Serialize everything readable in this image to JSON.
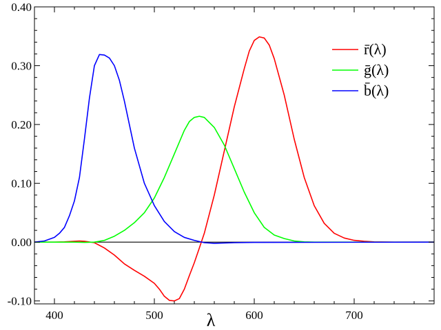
{
  "chart_data": {
    "type": "line",
    "title": "",
    "xlabel": "λ",
    "ylabel": "",
    "xlim": [
      380,
      780
    ],
    "ylim": [
      -0.105,
      0.4
    ],
    "xticks": [
      400,
      500,
      600,
      700
    ],
    "xtick_labels": [
      "400",
      "500",
      "600",
      "700"
    ],
    "yticks": [
      -0.1,
      0.0,
      0.1,
      0.2,
      0.3,
      0.4
    ],
    "ytick_labels": [
      "-0.10",
      "0.00",
      "0.10",
      "0.20",
      "0.30",
      "0.40"
    ],
    "grid": false,
    "zero_line": true,
    "legend_position": "top-right",
    "series": [
      {
        "name": "r̄(λ)",
        "color": "#ff0000",
        "points": [
          [
            380,
            0.0
          ],
          [
            390,
            0.0
          ],
          [
            400,
            0.0
          ],
          [
            410,
            0.0005
          ],
          [
            420,
            0.0015
          ],
          [
            425,
            0.002
          ],
          [
            430,
            0.0015
          ],
          [
            440,
            -0.001
          ],
          [
            450,
            -0.01
          ],
          [
            460,
            -0.022
          ],
          [
            470,
            -0.037
          ],
          [
            480,
            -0.048
          ],
          [
            490,
            -0.058
          ],
          [
            500,
            -0.07
          ],
          [
            505,
            -0.08
          ],
          [
            510,
            -0.092
          ],
          [
            515,
            -0.099
          ],
          [
            520,
            -0.1
          ],
          [
            525,
            -0.096
          ],
          [
            530,
            -0.08
          ],
          [
            535,
            -0.057
          ],
          [
            540,
            -0.035
          ],
          [
            545,
            -0.01
          ],
          [
            550,
            0.015
          ],
          [
            560,
            0.08
          ],
          [
            570,
            0.155
          ],
          [
            580,
            0.23
          ],
          [
            590,
            0.295
          ],
          [
            595,
            0.325
          ],
          [
            600,
            0.343
          ],
          [
            605,
            0.349
          ],
          [
            610,
            0.347
          ],
          [
            615,
            0.335
          ],
          [
            620,
            0.312
          ],
          [
            630,
            0.25
          ],
          [
            640,
            0.175
          ],
          [
            650,
            0.11
          ],
          [
            660,
            0.062
          ],
          [
            670,
            0.032
          ],
          [
            680,
            0.015
          ],
          [
            690,
            0.007
          ],
          [
            700,
            0.003
          ],
          [
            710,
            0.0015
          ],
          [
            720,
            0.0005
          ],
          [
            740,
            0.0
          ],
          [
            780,
            0.0
          ]
        ]
      },
      {
        "name": "ḡ(λ)",
        "color": "#00ff00",
        "points": [
          [
            380,
            0.0
          ],
          [
            400,
            0.0
          ],
          [
            420,
            0.0
          ],
          [
            430,
            -0.0005
          ],
          [
            440,
            0.0
          ],
          [
            450,
            0.003
          ],
          [
            460,
            0.01
          ],
          [
            470,
            0.02
          ],
          [
            480,
            0.033
          ],
          [
            490,
            0.05
          ],
          [
            500,
            0.075
          ],
          [
            510,
            0.11
          ],
          [
            520,
            0.15
          ],
          [
            530,
            0.19
          ],
          [
            535,
            0.205
          ],
          [
            540,
            0.212
          ],
          [
            545,
            0.214
          ],
          [
            550,
            0.212
          ],
          [
            560,
            0.195
          ],
          [
            570,
            0.165
          ],
          [
            580,
            0.125
          ],
          [
            590,
            0.085
          ],
          [
            600,
            0.05
          ],
          [
            610,
            0.025
          ],
          [
            620,
            0.012
          ],
          [
            630,
            0.006
          ],
          [
            640,
            0.002
          ],
          [
            650,
            0.0005
          ],
          [
            660,
            0.0
          ],
          [
            780,
            0.0
          ]
        ]
      },
      {
        "name": "b̄(λ)",
        "color": "#0000ff",
        "points": [
          [
            380,
            0.0
          ],
          [
            390,
            0.002
          ],
          [
            400,
            0.008
          ],
          [
            405,
            0.015
          ],
          [
            410,
            0.025
          ],
          [
            415,
            0.045
          ],
          [
            420,
            0.07
          ],
          [
            425,
            0.11
          ],
          [
            430,
            0.175
          ],
          [
            435,
            0.245
          ],
          [
            440,
            0.3
          ],
          [
            445,
            0.319
          ],
          [
            450,
            0.318
          ],
          [
            455,
            0.313
          ],
          [
            460,
            0.3
          ],
          [
            465,
            0.275
          ],
          [
            470,
            0.24
          ],
          [
            480,
            0.16
          ],
          [
            490,
            0.1
          ],
          [
            500,
            0.062
          ],
          [
            510,
            0.035
          ],
          [
            520,
            0.018
          ],
          [
            530,
            0.008
          ],
          [
            540,
            0.003
          ],
          [
            550,
            -0.001
          ],
          [
            560,
            -0.002
          ],
          [
            580,
            -0.001
          ],
          [
            600,
            -0.0005
          ],
          [
            780,
            0.0
          ]
        ]
      }
    ]
  }
}
